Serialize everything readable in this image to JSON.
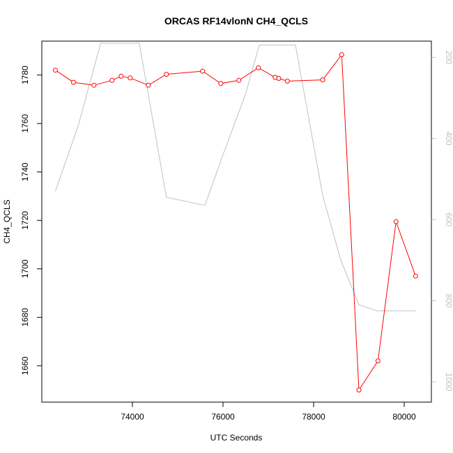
{
  "chart_data": {
    "type": "line",
    "title": "ORCAS RF14vlonN CH4_QCLS",
    "xlabel": "UTC Seconds",
    "ylabel": "CH4_QCLS",
    "xlim": [
      72000,
      80600
    ],
    "ylim": [
      1645,
      1794
    ],
    "y2lim": [
      1050,
      160
    ],
    "x_ticks": [
      74000,
      76000,
      78000,
      80000
    ],
    "y_ticks": [
      1660,
      1680,
      1700,
      1720,
      1740,
      1760,
      1780
    ],
    "y2_ticks": [
      200,
      400,
      600,
      800,
      1000
    ],
    "grid": false,
    "colors": {
      "primary": "#ff0000",
      "secondary": "#c0c0c0"
    },
    "series": [
      {
        "axis": "left",
        "style": "line+circles",
        "color": "#ff0000",
        "points": [
          [
            72300,
            1782
          ],
          [
            72700,
            1777
          ],
          [
            73150,
            1775.8
          ],
          [
            73550,
            1777.8
          ],
          [
            73750,
            1779.5
          ],
          [
            73950,
            1778.8
          ],
          [
            74350,
            1775.8
          ],
          [
            74750,
            1780.3
          ],
          [
            75550,
            1781.6
          ],
          [
            75950,
            1776.5
          ],
          [
            76350,
            1777.8
          ],
          [
            76780,
            1783
          ],
          [
            77150,
            1779
          ],
          [
            77230,
            1778.6
          ],
          [
            77420,
            1777.5
          ],
          [
            78200,
            1778
          ],
          [
            78620,
            1788.4
          ],
          [
            79000,
            1650
          ],
          [
            79420,
            1662
          ],
          [
            79820,
            1719.5
          ],
          [
            80250,
            1697
          ]
        ]
      },
      {
        "axis": "right",
        "style": "line",
        "color": "#c0c0c0",
        "points": [
          [
            72300,
            530
          ],
          [
            72800,
            370
          ],
          [
            73300,
            165
          ],
          [
            74150,
            165
          ],
          [
            74750,
            545
          ],
          [
            75600,
            565
          ],
          [
            76000,
            440
          ],
          [
            76500,
            290
          ],
          [
            76800,
            170
          ],
          [
            77600,
            170
          ],
          [
            78200,
            540
          ],
          [
            78600,
            700
          ],
          [
            79000,
            810
          ],
          [
            79400,
            825
          ],
          [
            80250,
            825
          ]
        ]
      }
    ]
  }
}
